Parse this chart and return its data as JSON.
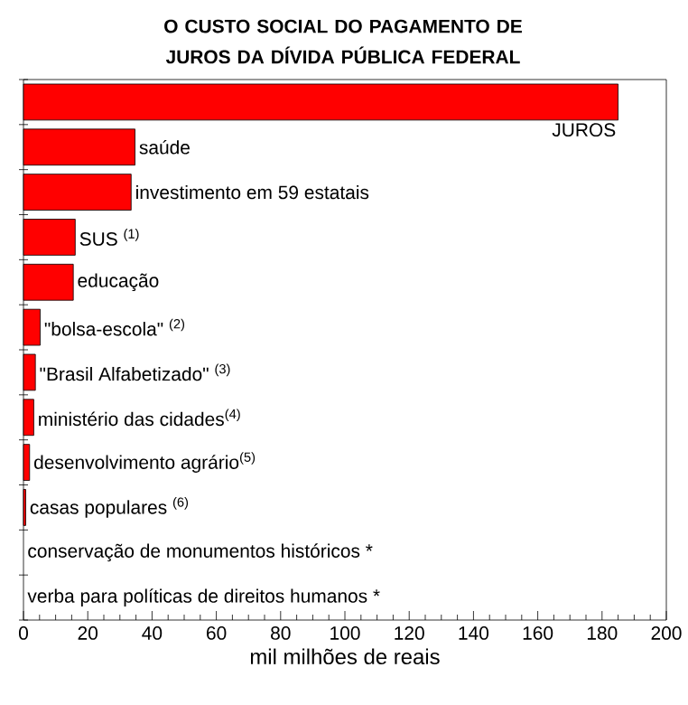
{
  "chart_data": {
    "type": "bar",
    "orientation": "horizontal",
    "title": "O CUSTO SOCIAL DO PAGAMENTO DE JUROS DA DÍVIDA PÚBLICA FEDERAL",
    "xlabel": "mil milhões de reais",
    "categories": [
      "JUROS",
      "saúde",
      "investimento em 59 estatais",
      "SUS $^{(1)}$",
      "educação",
      "\"bolsa-escola\" $^{(2)}$",
      "\"Brasil Alfabetizado\" $^{(3)}$",
      "ministério das cidades$^{(4)}$",
      "desenvolvimento agrário$^{(5)}$",
      "casas populares $^{(6)}$",
      "conservação de monumentos históricos *",
      "verba para políticas de direitos humanos *"
    ],
    "values": [
      185,
      34.7,
      33.5,
      16.1,
      15.5,
      5.2,
      3.7,
      3.2,
      1.9,
      0.7,
      0,
      0
    ],
    "color": "#ff0000",
    "xlim": [
      0,
      200
    ],
    "xticks": [
      0,
      20,
      40,
      60,
      80,
      100,
      120,
      140,
      160,
      180,
      200
    ],
    "tick_labels": "x",
    "grid": false
  }
}
